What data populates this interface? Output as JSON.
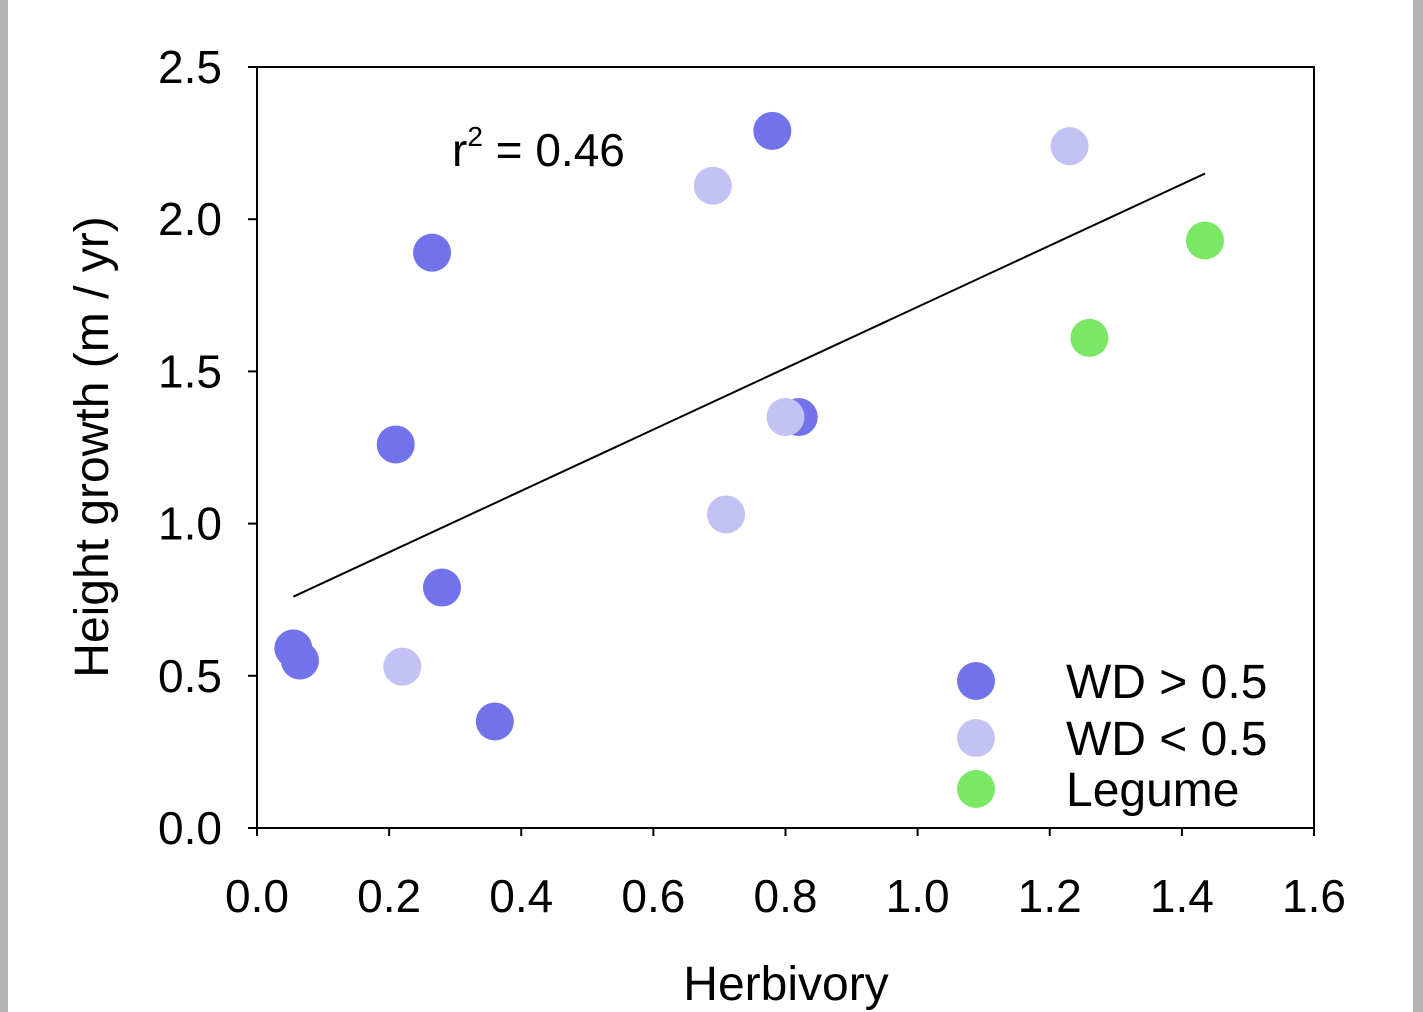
{
  "chart_data": {
    "type": "scatter",
    "title": "",
    "xlabel": "Herbivory",
    "ylabel": "Height growth (m / yr)",
    "xlim": [
      0.0,
      1.6
    ],
    "ylim": [
      0.0,
      2.5
    ],
    "x_ticks": [
      "0.0",
      "0.2",
      "0.4",
      "0.6",
      "0.8",
      "1.0",
      "1.2",
      "1.4",
      "1.6"
    ],
    "y_ticks": [
      "0.0",
      "0.5",
      "1.0",
      "1.5",
      "2.0",
      "2.5"
    ],
    "grid": false,
    "legend_position": "bottom-right",
    "annotation": {
      "base": "r",
      "superscript": "2",
      "rest": " = 0.46"
    },
    "trendline": {
      "x": [
        0.055,
        1.435
      ],
      "y": [
        0.76,
        2.15
      ]
    },
    "series": [
      {
        "name": "WD > 0.5",
        "color": "#7272ea",
        "points": [
          {
            "x": 0.055,
            "y": 0.59
          },
          {
            "x": 0.065,
            "y": 0.55
          },
          {
            "x": 0.21,
            "y": 1.26
          },
          {
            "x": 0.265,
            "y": 1.89
          },
          {
            "x": 0.28,
            "y": 0.79
          },
          {
            "x": 0.36,
            "y": 0.35
          },
          {
            "x": 0.78,
            "y": 2.29
          },
          {
            "x": 0.82,
            "y": 1.35
          }
        ]
      },
      {
        "name": "WD < 0.5",
        "color": "#c2c2f5",
        "points": [
          {
            "x": 0.22,
            "y": 0.53
          },
          {
            "x": 0.69,
            "y": 2.11
          },
          {
            "x": 0.71,
            "y": 1.03
          },
          {
            "x": 0.8,
            "y": 1.35
          },
          {
            "x": 1.23,
            "y": 2.24
          }
        ]
      },
      {
        "name": "Legume",
        "color": "#7ae864",
        "points": [
          {
            "x": 1.26,
            "y": 1.61
          },
          {
            "x": 1.435,
            "y": 1.93
          }
        ]
      }
    ]
  }
}
